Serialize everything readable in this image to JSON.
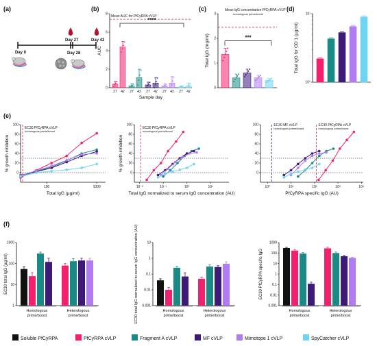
{
  "colors": {
    "Soluble PfCyRPA": "#111111",
    "PfCyRPA cVLP": "#f2216e",
    "Fragment A cVLP": "#1a8a86",
    "MF cVLP": "#3d1a78",
    "Mimotope 1 cVLP": "#b07cf0",
    "SpyCatcher cVLP": "#6fd3f2",
    "ref": "#e0245e"
  },
  "panel_labels": [
    "(a)",
    "(b)",
    "(c)",
    "(d)",
    "(e)",
    "(f)"
  ],
  "timeline": {
    "events": [
      {
        "label": "Day 0",
        "icon": "mouse-icon"
      },
      {
        "label": "Day 27",
        "icon": "blood-drop-icon"
      },
      {
        "label": "Day 28",
        "icon": "vlp-particle-icon"
      },
      {
        "label": "Day 42",
        "icon": "blood-drop-icon"
      }
    ]
  },
  "legend": [
    "Soluble PfCyRPA",
    "PfCyRPA cVLP",
    "Fragment A cVLP",
    "MF cVLP",
    "Mimotope 1 cVLP",
    "SpyCatcher cVLP"
  ],
  "chart_data": [
    {
      "id": "b",
      "type": "bar",
      "ylabel": "AUC",
      "xlabel": "Sample day",
      "ylim": [
        0,
        8
      ],
      "yticks": [
        "0",
        "2",
        "4",
        "6",
        "8"
      ],
      "categories": [
        "27",
        "42"
      ],
      "ref_line": {
        "value": 7.4,
        "label": "Mean AUC for PfCyRPA cVLP"
      },
      "significance": "****",
      "series": [
        {
          "name": "PfCyRPA cVLP",
          "values": [
            0.4,
            4.4
          ],
          "err": [
            0.3,
            0.6
          ]
        },
        {
          "name": "Fragment A cVLP",
          "values": [
            0.2,
            1.1
          ],
          "err": [
            0.2,
            0.9
          ]
        },
        {
          "name": "MF cVLP",
          "values": [
            0.3,
            0.5
          ],
          "err": [
            0.3,
            0.6
          ]
        },
        {
          "name": "Mimotope 1 cVLP",
          "values": [
            0.2,
            0.5
          ],
          "err": [
            0.2,
            0.7
          ]
        },
        {
          "name": "SpyCatcher cVLP",
          "values": [
            0.1,
            0.2
          ],
          "err": [
            0.1,
            0.3
          ]
        }
      ]
    },
    {
      "id": "c",
      "type": "bar",
      "ylabel": "Total IgG (mg/ml)",
      "ylim": [
        0,
        3
      ],
      "yticks": [
        "0",
        "1",
        "2",
        "3"
      ],
      "ref_line": {
        "value": 2.45,
        "label": "Mean IgG concentration PfCyRPA cVLP",
        "sublabel": "homologous prime/boost"
      },
      "significance": "***",
      "series": [
        {
          "name": "PfCyRPA cVLP",
          "value": 1.35,
          "err": 0.25
        },
        {
          "name": "Fragment A cVLP",
          "value": 0.4,
          "err": 0.15
        },
        {
          "name": "MF cVLP",
          "value": 0.6,
          "err": 0.15
        },
        {
          "name": "Mimotope 1 cVLP",
          "value": 0.4,
          "err": 0.1
        },
        {
          "name": "SpyCatcher cVLP",
          "value": 0.3,
          "err": 0.08
        }
      ]
    },
    {
      "id": "d",
      "type": "bar",
      "ylabel": "Total IgG for OD 1 (µg/ml)",
      "yscale": "log",
      "ylim": [
        1,
        10
      ],
      "yticks": [
        "10⁰",
        "10¹"
      ],
      "series": [
        {
          "name": "PfCyRPA cVLP",
          "value": 2.2
        },
        {
          "name": "Fragment A cVLP",
          "value": 4.3
        },
        {
          "name": "MF cVLP",
          "value": 5.3
        },
        {
          "name": "Mimotope 1 cVLP",
          "value": 6.5
        },
        {
          "name": "SpyCatcher cVLP",
          "value": 9.0
        }
      ]
    },
    {
      "id": "e1",
      "type": "line",
      "ylabel": "% growth inhibition",
      "xlabel": "Total IgG (µg/ml)",
      "xscale": "log",
      "xlim": [
        30,
        1500
      ],
      "ylim": [
        -20,
        100
      ],
      "xticks": [
        "100",
        "1000"
      ],
      "yticks": [
        "0",
        "20",
        "40",
        "60",
        "80",
        "100"
      ],
      "annotation": "EC30 PfCyRPA cVLP",
      "annotation2": "homologous prime/boost",
      "series": [
        {
          "name": "PfCyRPA cVLP",
          "points": [
            [
              30,
              -10
            ],
            [
              62,
              5
            ],
            [
              125,
              20
            ],
            [
              250,
              35
            ],
            [
              500,
              62
            ],
            [
              1000,
              82
            ]
          ]
        },
        {
          "name": "Fragment A cVLP",
          "points": [
            [
              30,
              -8
            ],
            [
              62,
              3
            ],
            [
              125,
              12
            ],
            [
              250,
              25
            ],
            [
              500,
              40
            ],
            [
              1000,
              48
            ]
          ]
        },
        {
          "name": "MF cVLP",
          "points": [
            [
              30,
              -5
            ],
            [
              62,
              2
            ],
            [
              125,
              10
            ],
            [
              250,
              22
            ],
            [
              500,
              35
            ],
            [
              1000,
              44
            ]
          ]
        },
        {
          "name": "Mimotope 1 cVLP",
          "points": [
            [
              30,
              -6
            ],
            [
              62,
              4
            ],
            [
              125,
              14
            ],
            [
              250,
              26
            ],
            [
              500,
              38
            ],
            [
              1000,
              40
            ]
          ]
        },
        {
          "name": "SpyCatcher cVLP",
          "points": [
            [
              30,
              -8
            ],
            [
              62,
              0
            ],
            [
              125,
              3
            ],
            [
              250,
              6
            ],
            [
              500,
              10
            ],
            [
              1000,
              18
            ]
          ]
        }
      ]
    },
    {
      "id": "e2",
      "type": "line",
      "ylabel": "% growth inhibition",
      "xlabel": "Total IgG normalized to serum IgG concentration (AU)",
      "xscale": "log",
      "xlim": [
        0.006,
        60
      ],
      "ylim": [
        -20,
        100
      ],
      "xticks": [
        "10⁻²",
        "10⁻¹",
        "10⁰",
        "10¹"
      ],
      "yticks": [
        "0",
        "20",
        "40",
        "60",
        "80",
        "100"
      ],
      "annotation": "EC30 PfCyRPA cVLP",
      "annotation2": "homologous prime/boost",
      "series": [
        {
          "name": "PfCyRPA cVLP",
          "points": [
            [
              0.02,
              -15
            ],
            [
              0.04,
              5
            ],
            [
              0.08,
              20
            ],
            [
              0.16,
              45
            ],
            [
              0.35,
              65
            ],
            [
              0.7,
              85
            ]
          ]
        },
        {
          "name": "Fragment A cVLP",
          "points": [
            [
              0.1,
              -8
            ],
            [
              0.2,
              5
            ],
            [
              0.4,
              20
            ],
            [
              0.8,
              35
            ],
            [
              1.6,
              45
            ],
            [
              3.2,
              50
            ]
          ]
        },
        {
          "name": "MF cVLP",
          "points": [
            [
              0.06,
              -5
            ],
            [
              0.12,
              5
            ],
            [
              0.25,
              18
            ],
            [
              0.5,
              30
            ],
            [
              1.0,
              40
            ],
            [
              2.0,
              45
            ]
          ]
        },
        {
          "name": "Mimotope 1 cVLP",
          "points": [
            [
              0.08,
              -5
            ],
            [
              0.16,
              8
            ],
            [
              0.32,
              22
            ],
            [
              0.64,
              32
            ],
            [
              1.3,
              40
            ],
            [
              2.6,
              42
            ]
          ]
        },
        {
          "name": "SpyCatcher cVLP",
          "points": [
            [
              0.06,
              -10
            ],
            [
              0.12,
              -2
            ],
            [
              0.25,
              2
            ],
            [
              0.5,
              6
            ],
            [
              1.0,
              10
            ],
            [
              2.0,
              18
            ]
          ]
        }
      ]
    },
    {
      "id": "e3",
      "type": "line",
      "ylabel": "",
      "xlabel": "PfCyRPA specific IgG (AU)",
      "xscale": "log",
      "xlim": [
        0.5,
        12000
      ],
      "ylim": [
        -20,
        100
      ],
      "xticks": [
        "10⁰",
        "10¹",
        "10²",
        "10³",
        "10⁴"
      ],
      "yticks": [
        "0",
        "20",
        "40",
        "60",
        "80",
        "100"
      ],
      "annotation": "EC30 MF cVLP",
      "annotation2": "homologous prime/boost",
      "annotation_b": "EC30 PfCyRPA cVLP",
      "annotation_b2": "homologous prime/boost",
      "series": [
        {
          "name": "PfCyRPA cVLP",
          "points": [
            [
              150,
              -15
            ],
            [
              300,
              5
            ],
            [
              600,
              25
            ],
            [
              1200,
              50
            ],
            [
              2400,
              68
            ],
            [
              4800,
              85
            ]
          ]
        },
        {
          "name": "Fragment A cVLP",
          "points": [
            [
              20,
              -8
            ],
            [
              40,
              5
            ],
            [
              80,
              20
            ],
            [
              160,
              35
            ],
            [
              320,
              45
            ],
            [
              640,
              50
            ]
          ]
        },
        {
          "name": "MF cVLP",
          "points": [
            [
              5,
              -5
            ],
            [
              10,
              5
            ],
            [
              20,
              18
            ],
            [
              40,
              30
            ],
            [
              80,
              40
            ],
            [
              160,
              45
            ]
          ]
        },
        {
          "name": "Mimotope 1 cVLP",
          "points": [
            [
              10,
              -5
            ],
            [
              20,
              10
            ],
            [
              40,
              25
            ],
            [
              80,
              35
            ],
            [
              160,
              40
            ],
            [
              320,
              42
            ]
          ]
        },
        {
          "name": "SpyCatcher cVLP",
          "points": [
            [
              5,
              -10
            ],
            [
              10,
              -2
            ],
            [
              20,
              2
            ],
            [
              40,
              6
            ],
            [
              80,
              10
            ],
            [
              160,
              18
            ]
          ]
        }
      ]
    },
    {
      "id": "f1",
      "type": "bar",
      "ylabel": "EC30 total IgG (µg/ml)",
      "yscale": "log",
      "ylim": [
        1,
        1000
      ],
      "yticks": [
        "1",
        "10",
        "100",
        "1000"
      ],
      "groups": [
        {
          "label": "Homologous",
          "label2": "prime/boost",
          "series": [
            {
              "name": "Soluble PfCyRPA",
              "value": 55,
              "err": 15
            },
            {
              "name": "PfCyRPA cVLP",
              "value": 25,
              "err": 12
            },
            {
              "name": "Fragment A cVLP",
              "value": 300,
              "err": 50
            },
            {
              "name": "MF cVLP",
              "value": 120,
              "err": 60
            }
          ]
        },
        {
          "label": "Heterologous",
          "label2": "prime/boost",
          "series": [
            {
              "name": "PfCyRPA cVLP",
              "value": 80,
              "err": 20
            },
            {
              "name": "Fragment A cVLP",
              "value": 130,
              "err": 40
            },
            {
              "name": "MF cVLP",
              "value": 140,
              "err": 40
            },
            {
              "name": "Mimotope 1 cVLP",
              "value": 140,
              "err": 40
            }
          ]
        }
      ]
    },
    {
      "id": "f2",
      "type": "bar",
      "ylabel": "EC30 total IgG normalized to serum IgG concentration (AU)",
      "yscale": "log",
      "ylim": [
        0.001,
        10
      ],
      "yticks": [
        "0.001",
        "0.01",
        "0.1",
        "1",
        "10"
      ],
      "groups": [
        {
          "label": "Homologous",
          "label2": "prime/boost",
          "series": [
            {
              "name": "Soluble PfCyRPA",
              "value": 0.04,
              "err": 0.01
            },
            {
              "name": "PfCyRPA cVLP",
              "value": 0.01,
              "err": 0.004
            },
            {
              "name": "Fragment A cVLP",
              "value": 0.25,
              "err": 0.06
            },
            {
              "name": "MF cVLP",
              "value": 0.07,
              "err": 0.05
            }
          ]
        },
        {
          "label": "Heterologous",
          "label2": "prime/boost",
          "series": [
            {
              "name": "PfCyRPA cVLP",
              "value": 0.05,
              "err": 0.015
            },
            {
              "name": "Fragment A cVLP",
              "value": 0.3,
              "err": 0.08
            },
            {
              "name": "MF cVLP",
              "value": 0.28,
              "err": 0.06
            },
            {
              "name": "Mimotope 1 cVLP",
              "value": 0.45,
              "err": 0.15
            }
          ]
        }
      ]
    },
    {
      "id": "f3",
      "type": "bar",
      "ylabel": "EC30 PfCyRPA specific IgG",
      "yscale": "log",
      "ylim": [
        0.001,
        1000
      ],
      "yticks": [
        "0.001",
        "0.01",
        "0.1",
        "1",
        "10",
        "100",
        "1000"
      ],
      "groups": [
        {
          "label": "Homologous",
          "label2": "prime/boost",
          "series": [
            {
              "name": "Soluble PfCyRPA",
              "value": 300,
              "err": 50
            },
            {
              "name": "PfCyRPA cVLP",
              "value": 170,
              "err": 50
            },
            {
              "name": "Fragment A cVLP",
              "value": 90,
              "err": 20
            },
            {
              "name": "MF cVLP",
              "value": 0.12,
              "err": 0.05
            }
          ]
        },
        {
          "label": "Heterologous",
          "label2": "prime/boost",
          "series": [
            {
              "name": "PfCyRPA cVLP",
              "value": 280,
              "err": 80
            },
            {
              "name": "Fragment A cVLP",
              "value": 100,
              "err": 25
            },
            {
              "name": "MF cVLP",
              "value": 50,
              "err": 10
            },
            {
              "name": "Mimotope 1 cVLP",
              "value": 35,
              "err": 5
            }
          ]
        }
      ]
    }
  ]
}
